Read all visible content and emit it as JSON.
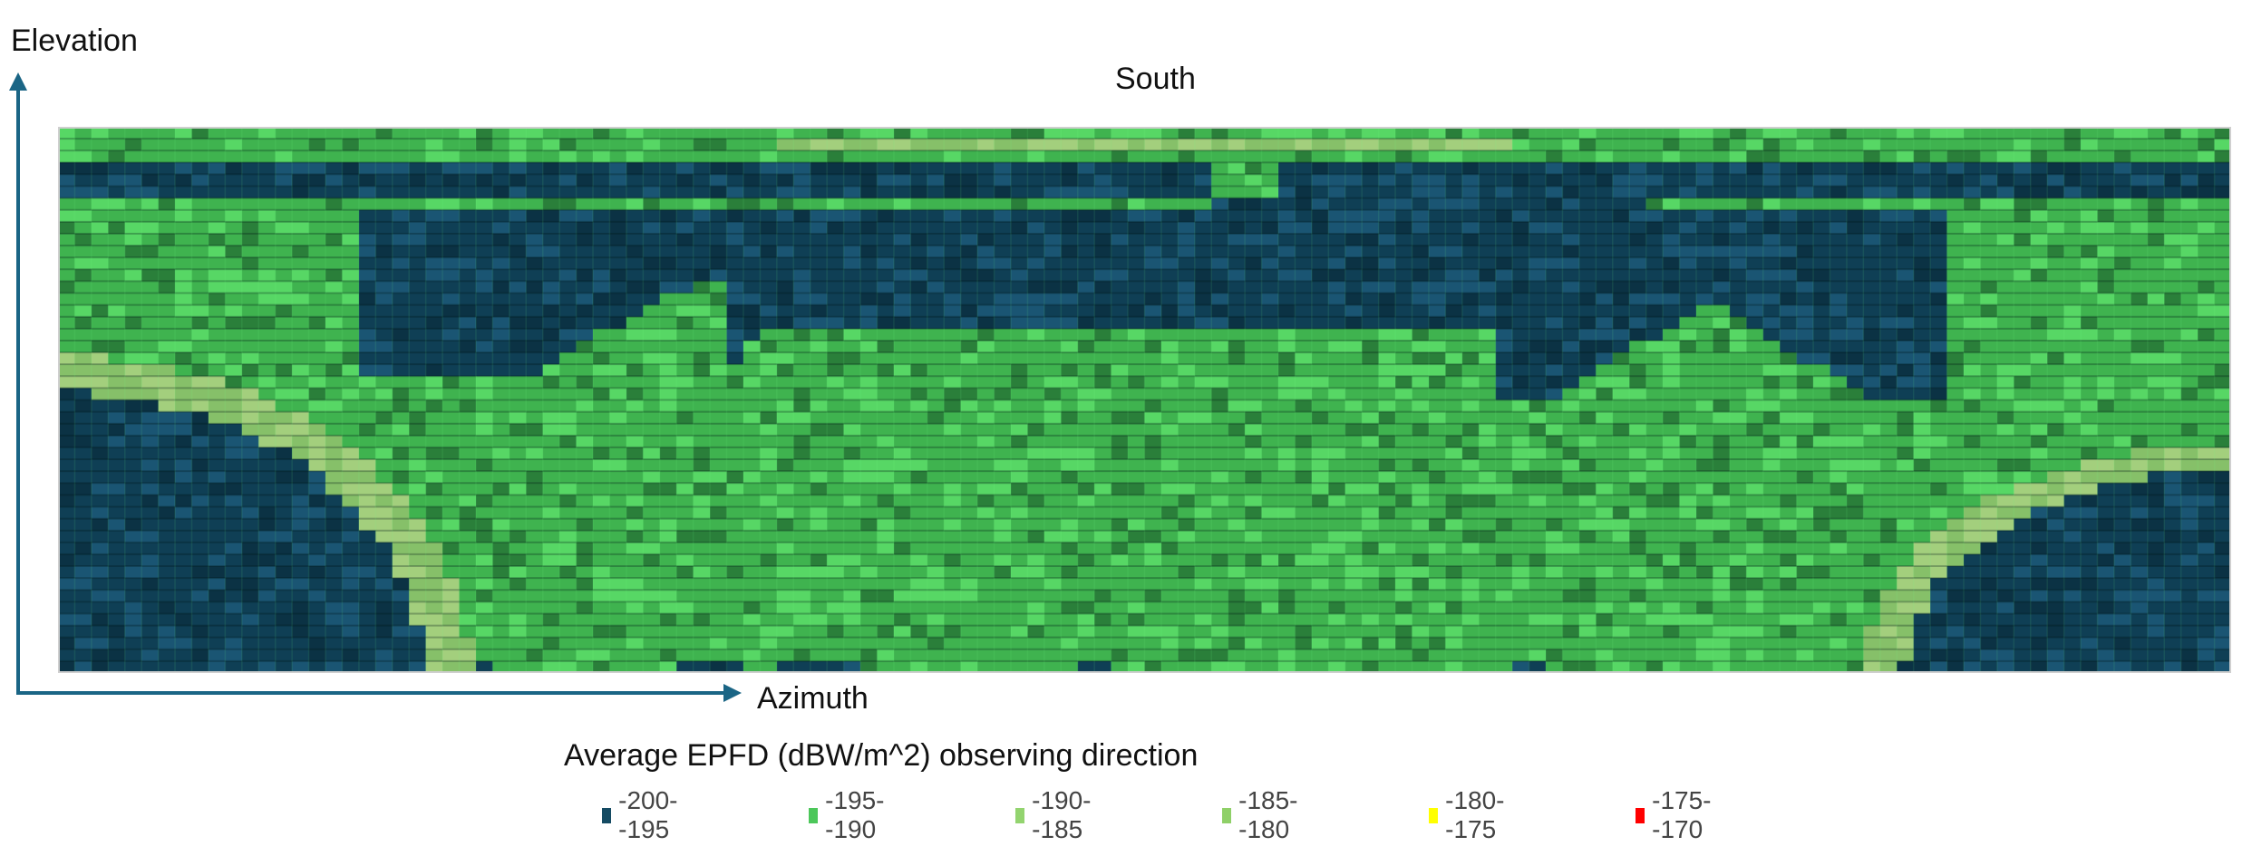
{
  "chart_data": {
    "type": "heatmap",
    "title": "Average EPFD (dBW/m^2) observing direction",
    "subtitle": "South",
    "xlabel": "Azimuth",
    "ylabel": "Elevation",
    "legend_position": "bottom",
    "legend": [
      {
        "label": "-200--195",
        "color": "#154b63"
      },
      {
        "label": "-195--190",
        "color": "#4cc75a"
      },
      {
        "label": "-190--185",
        "color": "#93d46f"
      },
      {
        "label": "-185--180",
        "color": "#8fd068"
      },
      {
        "label": "-180--175",
        "color": "#ffff00"
      },
      {
        "label": "-175--170",
        "color": "#ff0000"
      }
    ]
  }
}
